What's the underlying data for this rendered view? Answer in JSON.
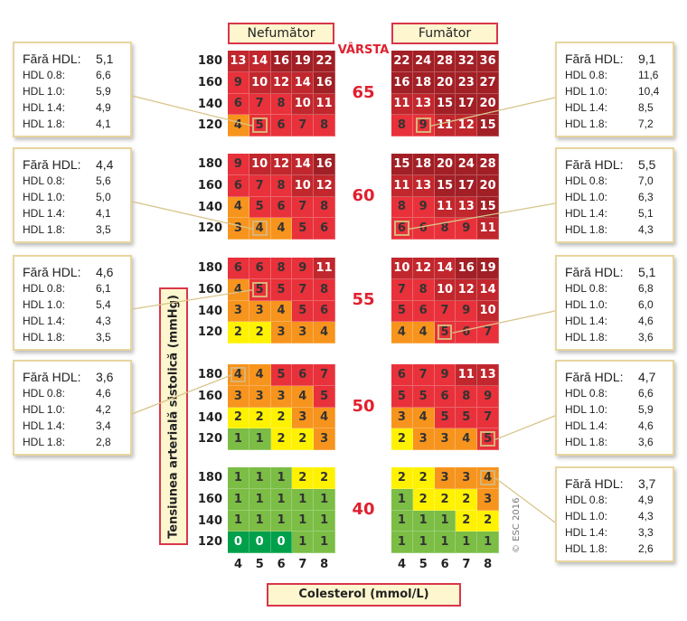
{
  "headers": {
    "non_smoker": "Nefumător",
    "smoker": "Fumător",
    "age": "VÂRSTA"
  },
  "y_axis_label": "Tensiunea arterială sistolică (mmHg)",
  "x_axis_label": "Colesterol (mmol/L)",
  "sbp_levels": [
    "180",
    "160",
    "140",
    "120"
  ],
  "cholesterol_levels": [
    "4",
    "5",
    "6",
    "7",
    "8"
  ],
  "copyright": "© ESC 2016",
  "colors": {
    "dark_green": "#00a04b",
    "green": "#7bbd45",
    "yellow": "#fff200",
    "orange": "#f7941d",
    "red": "#e8313a",
    "dark_red": "#c1272d",
    "darkest_red": "#a21f26",
    "accent": "#d9364a"
  },
  "ages": [
    {
      "age": "65",
      "non_smoker": [
        [
          13,
          14,
          16,
          19,
          22
        ],
        [
          9,
          10,
          12,
          14,
          16
        ],
        [
          6,
          7,
          8,
          10,
          11
        ],
        [
          4,
          5,
          6,
          7,
          8
        ]
      ],
      "smoker": [
        [
          22,
          24,
          28,
          32,
          36
        ],
        [
          16,
          18,
          20,
          23,
          27
        ],
        [
          11,
          13,
          15,
          17,
          20
        ],
        [
          8,
          9,
          11,
          12,
          15
        ]
      ],
      "hl_non": [
        3,
        1
      ],
      "hl_smk": [
        3,
        1
      ]
    },
    {
      "age": "60",
      "non_smoker": [
        [
          9,
          10,
          12,
          14,
          16
        ],
        [
          6,
          7,
          8,
          10,
          12
        ],
        [
          4,
          5,
          6,
          7,
          8
        ],
        [
          3,
          4,
          4,
          5,
          6
        ]
      ],
      "smoker": [
        [
          15,
          18,
          20,
          24,
          28
        ],
        [
          11,
          13,
          15,
          17,
          20
        ],
        [
          8,
          9,
          11,
          13,
          15
        ],
        [
          6,
          6,
          8,
          9,
          11
        ]
      ],
      "hl_non": [
        3,
        1
      ],
      "hl_smk": [
        3,
        0
      ]
    },
    {
      "age": "55",
      "non_smoker": [
        [
          6,
          6,
          8,
          9,
          11
        ],
        [
          4,
          5,
          5,
          7,
          8
        ],
        [
          3,
          3,
          4,
          5,
          6
        ],
        [
          2,
          2,
          3,
          3,
          4
        ]
      ],
      "smoker": [
        [
          10,
          12,
          14,
          16,
          19
        ],
        [
          7,
          8,
          10,
          12,
          14
        ],
        [
          5,
          6,
          7,
          9,
          10
        ],
        [
          4,
          4,
          5,
          6,
          7
        ]
      ],
      "hl_non": [
        1,
        1
      ],
      "hl_smk": [
        3,
        2
      ]
    },
    {
      "age": "50",
      "non_smoker": [
        [
          4,
          4,
          5,
          6,
          7
        ],
        [
          3,
          3,
          3,
          4,
          5
        ],
        [
          2,
          2,
          2,
          3,
          4
        ],
        [
          1,
          1,
          2,
          2,
          3
        ]
      ],
      "smoker": [
        [
          6,
          7,
          9,
          11,
          13
        ],
        [
          5,
          5,
          6,
          8,
          9
        ],
        [
          3,
          4,
          5,
          5,
          7
        ],
        [
          2,
          3,
          3,
          4,
          5
        ]
      ],
      "hl_non": [
        0,
        0
      ],
      "hl_smk": [
        3,
        4
      ]
    },
    {
      "age": "40",
      "non_smoker": [
        [
          1,
          1,
          1,
          2,
          2
        ],
        [
          1,
          1,
          1,
          1,
          1
        ],
        [
          1,
          1,
          1,
          1,
          1
        ],
        [
          0,
          0,
          0,
          1,
          1
        ]
      ],
      "smoker": [
        [
          2,
          2,
          3,
          3,
          4
        ],
        [
          1,
          2,
          2,
          2,
          3
        ],
        [
          1,
          1,
          1,
          2,
          2
        ],
        [
          1,
          1,
          1,
          1,
          1
        ]
      ],
      "hl_non": null,
      "hl_smk": [
        0,
        4
      ]
    }
  ],
  "left_boxes": [
    {
      "rows": [
        [
          "Fără HDL:",
          "5,1"
        ],
        [
          "HDL 0.8:",
          "6,6"
        ],
        [
          "HDL 1.0:",
          "5,9"
        ],
        [
          "HDL 1.4:",
          "4,9"
        ],
        [
          "HDL 1.8:",
          "4,1"
        ]
      ]
    },
    {
      "rows": [
        [
          "Fără HDL:",
          "4,4"
        ],
        [
          "HDL 0.8:",
          "5,6"
        ],
        [
          "HDL 1.0:",
          "5,0"
        ],
        [
          "HDL 1.4:",
          "4,1"
        ],
        [
          "HDL 1.8:",
          "3,5"
        ]
      ]
    },
    {
      "rows": [
        [
          "Fără HDL:",
          "4,6"
        ],
        [
          "HDL 0.8:",
          "6,1"
        ],
        [
          "HDL 1.0:",
          "5,4"
        ],
        [
          "HDL 1.4:",
          "4,3"
        ],
        [
          "HDL 1.8:",
          "3,5"
        ]
      ]
    },
    {
      "rows": [
        [
          "Fără HDL:",
          "3,6"
        ],
        [
          "HDL 0.8:",
          "4,6"
        ],
        [
          "HDL 1.0:",
          "4,2"
        ],
        [
          "HDL 1.4:",
          "3,4"
        ],
        [
          "HDL 1.8:",
          "2,8"
        ]
      ]
    }
  ],
  "right_boxes": [
    {
      "rows": [
        [
          "Fără HDL:",
          "9,1"
        ],
        [
          "HDL 0.8:",
          "11,6"
        ],
        [
          "HDL 1.0:",
          "10,4"
        ],
        [
          "HDL 1.4:",
          "8,5"
        ],
        [
          "HDL 1.8:",
          "7,2"
        ]
      ]
    },
    {
      "rows": [
        [
          "Fără HDL:",
          "5,5"
        ],
        [
          "HDL 0.8:",
          "7,0"
        ],
        [
          "HDL 1.0:",
          "6,3"
        ],
        [
          "HDL 1.4:",
          "5,1"
        ],
        [
          "HDL 1.8:",
          "4,3"
        ]
      ]
    },
    {
      "rows": [
        [
          "Fără HDL:",
          "5,1"
        ],
        [
          "HDL 0.8:",
          "6,8"
        ],
        [
          "HDL 1.0:",
          "6,0"
        ],
        [
          "HDL 1.4:",
          "4,6"
        ],
        [
          "HDL 1.8:",
          "3,6"
        ]
      ]
    },
    {
      "rows": [
        [
          "Fără HDL:",
          "4,7"
        ],
        [
          "HDL 0.8:",
          "6,6"
        ],
        [
          "HDL 1.0:",
          "5,9"
        ],
        [
          "HDL 1.4:",
          "4,6"
        ],
        [
          "HDL 1.8:",
          "3,6"
        ]
      ]
    },
    {
      "rows": [
        [
          "Fără HDL:",
          "3,7"
        ],
        [
          "HDL 0.8:",
          "4,9"
        ],
        [
          "HDL 1.0:",
          "4,3"
        ],
        [
          "HDL 1.4:",
          "3,3"
        ],
        [
          "HDL 1.8:",
          "2,6"
        ]
      ]
    }
  ]
}
